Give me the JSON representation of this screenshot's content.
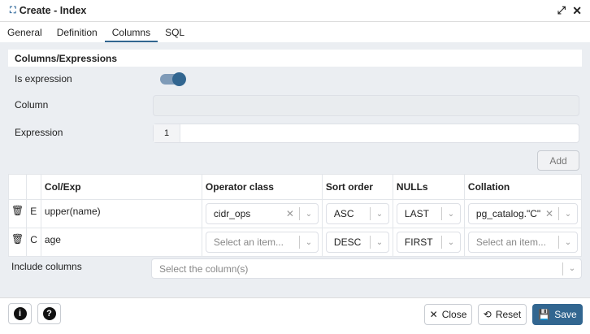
{
  "window": {
    "title": "Create - Index",
    "icon": "index-icon",
    "expand_icon": "expand-icon",
    "close_icon": "close-icon"
  },
  "tabs": [
    {
      "label": "General"
    },
    {
      "label": "Definition"
    },
    {
      "label": "Columns",
      "active": true
    },
    {
      "label": "SQL"
    }
  ],
  "section": {
    "title": "Columns/Expressions"
  },
  "form": {
    "is_expression_label": "Is expression",
    "is_expression": true,
    "column_label": "Column",
    "column_value": "",
    "expression_label": "Expression",
    "expression_line": "1",
    "expression_value": "",
    "add_label": "Add"
  },
  "table": {
    "headers": [
      "Col/Exp",
      "Operator class",
      "Sort order",
      "NULLs",
      "Collation"
    ],
    "rows": [
      {
        "type": "E",
        "col": "upper(name)",
        "opclass": "cidr_ops",
        "sort": "ASC",
        "nulls": "LAST",
        "collation": "pg_catalog.\"C\""
      },
      {
        "type": "C",
        "col": "age",
        "opclass": "Select an item...",
        "sort": "DESC",
        "nulls": "FIRST",
        "collation": "Select an item..."
      }
    ]
  },
  "include": {
    "label": "Include columns",
    "placeholder": "Select the column(s)"
  },
  "footer": {
    "close": "Close",
    "reset": "Reset",
    "save": "Save"
  },
  "colors": {
    "accent": "#326690",
    "body_bg": "#ebeef2"
  }
}
